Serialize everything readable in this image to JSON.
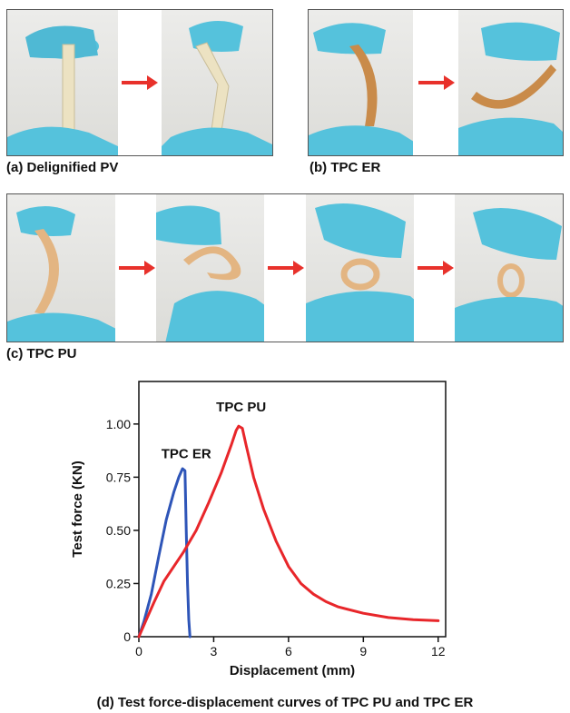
{
  "panels": {
    "a_label": "(a) Delignified PV",
    "b_label": "(b) TPC ER",
    "c_label": "(c) TPC PU",
    "d_caption": "(d) Test force-displacement curves of TPC PU and TPC ER"
  },
  "colors": {
    "arrow": "#e8312b",
    "glove": "#55c2dc",
    "pv_sample": "#ece2c2",
    "er_sample": "#c98b4a",
    "pu_sample": "#e3b582",
    "tpc_pu_line": "#e8262a",
    "tpc_er_line": "#2e55b8"
  },
  "chart_data": {
    "type": "line",
    "title": "",
    "xlabel": "Displacement (mm)",
    "ylabel": "Test force (KN)",
    "xlim": [
      0,
      12.3
    ],
    "ylim": [
      0,
      1.2
    ],
    "xticks": [
      0,
      3,
      6,
      9,
      12
    ],
    "yticks": [
      0,
      0.25,
      0.5,
      0.75,
      1.0
    ],
    "xtick_labels": [
      "0",
      "3",
      "6",
      "9",
      "12"
    ],
    "ytick_labels": [
      "0",
      "0.25",
      "0.50",
      "0.75",
      "1.00"
    ],
    "grid": false,
    "series": [
      {
        "name": "TPC ER",
        "color": "#2e55b8",
        "x": [
          0,
          0.2,
          0.5,
          0.8,
          1.1,
          1.4,
          1.6,
          1.75,
          1.85,
          1.9,
          1.95,
          2.0,
          2.05
        ],
        "y": [
          0,
          0.07,
          0.2,
          0.38,
          0.55,
          0.68,
          0.75,
          0.79,
          0.78,
          0.5,
          0.25,
          0.08,
          0
        ]
      },
      {
        "name": "TPC PU",
        "color": "#e8262a",
        "x": [
          0,
          0.3,
          0.6,
          1.0,
          1.4,
          1.8,
          2.3,
          2.8,
          3.3,
          3.7,
          3.9,
          4.0,
          4.15,
          4.3,
          4.6,
          5.0,
          5.5,
          6.0,
          6.5,
          7.0,
          7.5,
          8.0,
          9.0,
          10.0,
          11.0,
          12.0
        ],
        "y": [
          0,
          0.08,
          0.16,
          0.26,
          0.33,
          0.4,
          0.5,
          0.63,
          0.77,
          0.9,
          0.97,
          0.99,
          0.98,
          0.9,
          0.75,
          0.6,
          0.45,
          0.33,
          0.25,
          0.2,
          0.165,
          0.14,
          0.11,
          0.09,
          0.08,
          0.075
        ]
      }
    ],
    "annotations": [
      {
        "text": "TPC PU",
        "x": 4.1,
        "y": 1.06
      },
      {
        "text": "TPC ER",
        "x": 1.9,
        "y": 0.84
      }
    ]
  }
}
